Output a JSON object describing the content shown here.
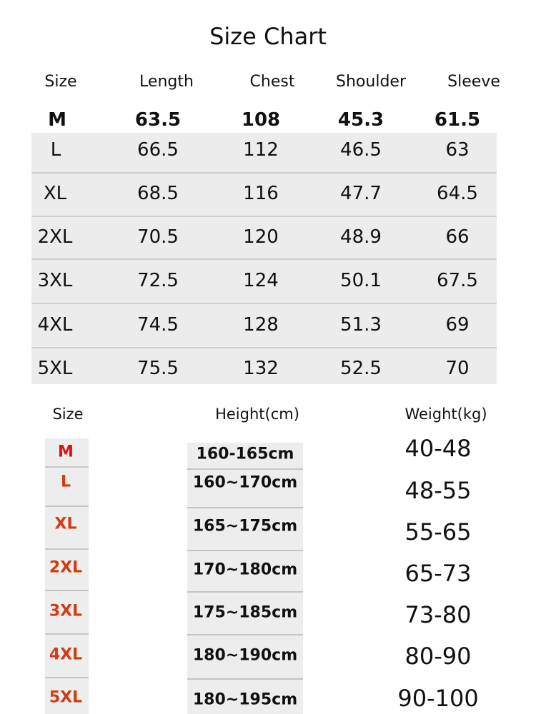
{
  "title": "Size Chart",
  "measurements": {
    "headers": [
      "Size",
      "Length",
      "Chest",
      "Shoulder",
      "Sleeve"
    ],
    "rows": [
      [
        "M",
        "63.5",
        "108",
        "45.3",
        "61.5"
      ],
      [
        "L",
        "66.5",
        "112",
        "46.5",
        "63"
      ],
      [
        "XL",
        "68.5",
        "116",
        "47.7",
        "64.5"
      ],
      [
        "2XL",
        "70.5",
        "120",
        "48.9",
        "66"
      ],
      [
        "3XL",
        "72.5",
        "124",
        "50.1",
        "67.5"
      ],
      [
        "4XL",
        "74.5",
        "128",
        "51.3",
        "69"
      ],
      [
        "5XL",
        "75.5",
        "132",
        "52.5",
        "70"
      ]
    ]
  },
  "recommendation": {
    "headers": [
      "Size",
      "Height(cm)",
      "Weight(kg)"
    ],
    "rows": [
      [
        "M",
        "160-165cm",
        "40-48"
      ],
      [
        "L",
        "160~170cm",
        "48-55"
      ],
      [
        "XL",
        "165~175cm",
        "55-65"
      ],
      [
        "2XL",
        "170~180cm",
        "65-73"
      ],
      [
        "3XL",
        "175~185cm",
        "73-80"
      ],
      [
        "4XL",
        "180~190cm",
        "80-90"
      ],
      [
        "5XL",
        "180~195cm",
        "90-100"
      ]
    ]
  },
  "colors": {
    "size_m": "#e01010",
    "size_other": "#d43a12"
  }
}
